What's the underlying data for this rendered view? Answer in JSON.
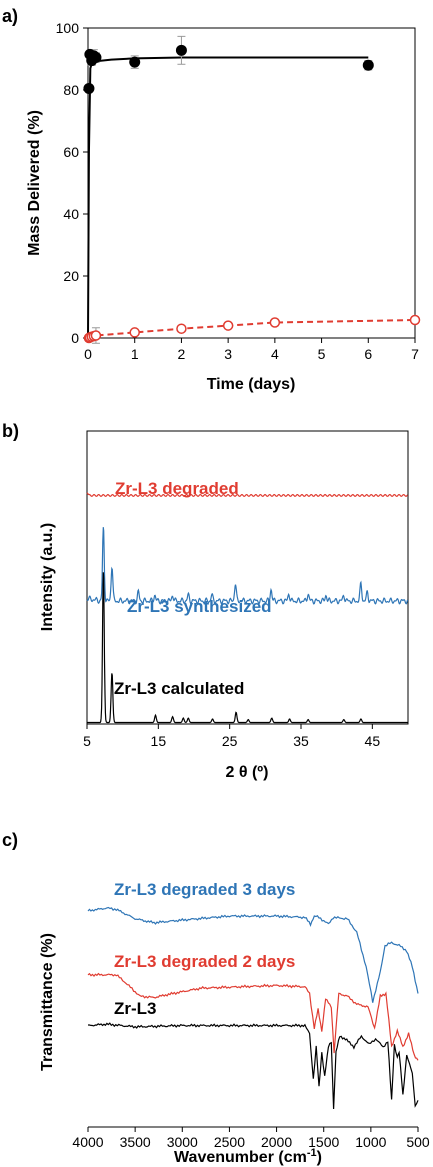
{
  "chart_data": [
    {
      "panel_label": "a)",
      "type": "scatter",
      "xlabel": "Time (days)",
      "ylabel": "Mass Delivered (%)",
      "xlim": [
        0,
        7
      ],
      "ylim": [
        0,
        100
      ],
      "xticks": [
        "0",
        "1",
        "2",
        "3",
        "4",
        "5",
        "6",
        "7"
      ],
      "yticks": [
        "0",
        "20",
        "40",
        "60",
        "80",
        "100"
      ],
      "grid": false,
      "legend": "none",
      "series": [
        {
          "style": "filled-circle-solid-fit",
          "color": "#000000",
          "x": [
            0.02,
            0.04,
            0.08,
            0.125,
            0.17,
            1,
            2,
            6
          ],
          "y": [
            80.5,
            91.5,
            89.5,
            91,
            90.5,
            89,
            92.8,
            88
          ],
          "err": [
            0,
            1,
            1.5,
            2,
            1.5,
            2,
            4.5,
            1.5
          ],
          "fit_x": [
            0,
            0.02,
            0.05,
            0.1,
            0.15,
            0.2,
            0.5,
            1,
            2,
            3,
            4,
            5,
            6
          ],
          "fit_y": [
            0,
            60,
            87,
            89.5,
            89.5,
            89.3,
            89.8,
            90.2,
            90.5,
            90.5,
            90.5,
            90.5,
            90.5
          ]
        },
        {
          "style": "open-circle-dashed",
          "color": "#e03c31",
          "x": [
            0.02,
            0.04,
            0.08,
            0.125,
            0.17,
            1,
            2,
            3,
            4,
            7
          ],
          "y": [
            0,
            0.2,
            0.4,
            0.6,
            0.8,
            1.8,
            3,
            4,
            5,
            5.8
          ],
          "err": [
            0,
            0,
            0,
            0,
            2.5,
            0,
            0,
            0,
            0,
            0
          ]
        }
      ]
    },
    {
      "panel_label": "b)",
      "type": "line",
      "xlabel": "2 θ (º)",
      "ylabel": "Intensity (a.u.)",
      "xlim": [
        5,
        50
      ],
      "xticks": [
        "5",
        "15",
        "25",
        "35",
        "45"
      ],
      "series": [
        {
          "label": "Zr-L3 degraded",
          "color": "#e03c31",
          "baseline": 0.78,
          "peaks": [
            [
              5,
              0.012
            ]
          ]
        },
        {
          "label": "Zr-L3 synthesized",
          "color": "#2e75b6",
          "baseline": 0.42,
          "peaks": [
            [
              7.3,
              0.25
            ],
            [
              8.5,
              0.12
            ],
            [
              12.2,
              0.03
            ],
            [
              14.5,
              0.02
            ],
            [
              17,
              0.02
            ],
            [
              19.2,
              0.02
            ],
            [
              22.5,
              0.02
            ],
            [
              25.8,
              0.06
            ],
            [
              30.8,
              0.04
            ],
            [
              33.3,
              0.025
            ],
            [
              36,
              0.025
            ],
            [
              38.5,
              0.02
            ],
            [
              41,
              0.02
            ],
            [
              43.4,
              0.06
            ],
            [
              44.3,
              0.03
            ]
          ]
        },
        {
          "label": "Zr-L3 calculated",
          "color": "#000000",
          "baseline": 0.005,
          "peaks": [
            [
              7.3,
              0.52
            ],
            [
              8.5,
              0.17
            ],
            [
              14.6,
              0.025
            ],
            [
              17,
              0.02
            ],
            [
              18.5,
              0.015
            ],
            [
              19.2,
              0.015
            ],
            [
              22.6,
              0.012
            ],
            [
              25.9,
              0.035
            ],
            [
              27.6,
              0.01
            ],
            [
              30.9,
              0.015
            ],
            [
              33.4,
              0.012
            ],
            [
              36,
              0.01
            ],
            [
              41,
              0.01
            ],
            [
              43.4,
              0.012
            ]
          ]
        }
      ]
    },
    {
      "panel_label": "c)",
      "type": "line",
      "xlabel": "Wavenumber (cm-1)",
      "xlabel_main": "Wavenumber (cm",
      "xlabel_sup": "-1",
      "xlabel_tail": ")",
      "ylabel": "Transmittance (%)",
      "xlim": [
        4000,
        500
      ],
      "x_reversed": true,
      "xticks": [
        "4000",
        "3500",
        "3000",
        "2500",
        "2000",
        "1500",
        "1000",
        "500"
      ],
      "series": [
        {
          "label": "Zr-L3 degraded 3 days",
          "color": "#2e75b6",
          "anchors": [
            [
              4000,
              0.81
            ],
            [
              3800,
              0.82
            ],
            [
              3700,
              0.815
            ],
            [
              3500,
              0.78
            ],
            [
              3300,
              0.765
            ],
            [
              3000,
              0.775
            ],
            [
              2500,
              0.79
            ],
            [
              2000,
              0.79
            ],
            [
              1700,
              0.785
            ],
            [
              1640,
              0.76
            ],
            [
              1600,
              0.79
            ],
            [
              1550,
              0.785
            ],
            [
              1450,
              0.76
            ],
            [
              1400,
              0.785
            ],
            [
              1250,
              0.78
            ],
            [
              1150,
              0.73
            ],
            [
              1050,
              0.6
            ],
            [
              980,
              0.47
            ],
            [
              900,
              0.58
            ],
            [
              850,
              0.68
            ],
            [
              780,
              0.69
            ],
            [
              700,
              0.68
            ],
            [
              620,
              0.66
            ],
            [
              560,
              0.6
            ],
            [
              500,
              0.5
            ]
          ]
        },
        {
          "label": "Zr-L3 degraded 2 days",
          "color": "#e03c31",
          "anchors": [
            [
              4000,
              0.57
            ],
            [
              3700,
              0.57
            ],
            [
              3600,
              0.54
            ],
            [
              3450,
              0.49
            ],
            [
              3300,
              0.485
            ],
            [
              3100,
              0.5
            ],
            [
              2800,
              0.52
            ],
            [
              2000,
              0.53
            ],
            [
              1700,
              0.525
            ],
            [
              1650,
              0.5
            ],
            [
              1600,
              0.37
            ],
            [
              1560,
              0.44
            ],
            [
              1520,
              0.36
            ],
            [
              1480,
              0.48
            ],
            [
              1420,
              0.45
            ],
            [
              1390,
              0.28
            ],
            [
              1340,
              0.5
            ],
            [
              1250,
              0.49
            ],
            [
              1150,
              0.46
            ],
            [
              1030,
              0.45
            ],
            [
              960,
              0.37
            ],
            [
              900,
              0.49
            ],
            [
              840,
              0.5
            ],
            [
              780,
              0.3
            ],
            [
              720,
              0.36
            ],
            [
              660,
              0.3
            ],
            [
              600,
              0.35
            ],
            [
              540,
              0.27
            ],
            [
              500,
              0.25
            ]
          ]
        },
        {
          "label": "Zr-L3",
          "color": "#000000",
          "anchors": [
            [
              4000,
              0.38
            ],
            [
              3800,
              0.385
            ],
            [
              3500,
              0.375
            ],
            [
              3000,
              0.38
            ],
            [
              2500,
              0.38
            ],
            [
              2000,
              0.38
            ],
            [
              1700,
              0.38
            ],
            [
              1650,
              0.35
            ],
            [
              1610,
              0.18
            ],
            [
              1580,
              0.3
            ],
            [
              1550,
              0.15
            ],
            [
              1520,
              0.28
            ],
            [
              1490,
              0.19
            ],
            [
              1450,
              0.3
            ],
            [
              1420,
              0.32
            ],
            [
              1395,
              0.07
            ],
            [
              1370,
              0.28
            ],
            [
              1330,
              0.34
            ],
            [
              1270,
              0.33
            ],
            [
              1180,
              0.3
            ],
            [
              1100,
              0.34
            ],
            [
              1020,
              0.31
            ],
            [
              950,
              0.33
            ],
            [
              870,
              0.3
            ],
            [
              820,
              0.32
            ],
            [
              780,
              0.1
            ],
            [
              750,
              0.31
            ],
            [
              720,
              0.26
            ],
            [
              700,
              0.28
            ],
            [
              660,
              0.12
            ],
            [
              620,
              0.27
            ],
            [
              560,
              0.2
            ],
            [
              530,
              0.08
            ],
            [
              500,
              0.1
            ]
          ]
        }
      ]
    }
  ]
}
